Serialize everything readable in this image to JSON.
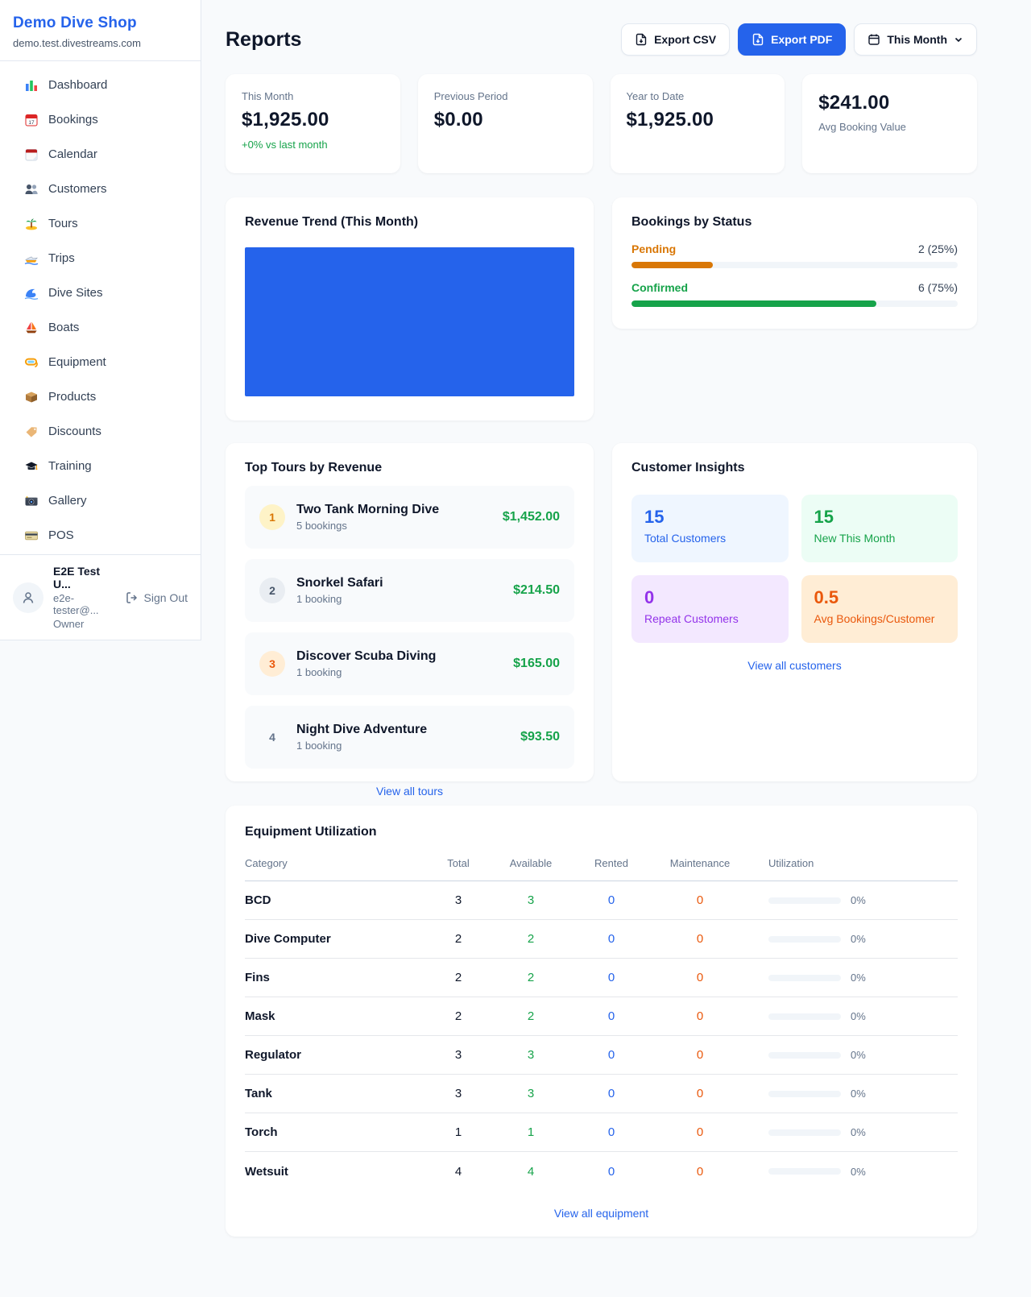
{
  "colors": {
    "accent": "#2563eb",
    "chart_bar": "#2563eb",
    "pending": "#d97706",
    "confirmed": "#16a34a",
    "available": "#16a34a",
    "rented": "#2563eb",
    "maintenance": "#ea580c"
  },
  "sidebar": {
    "shop_name": "Demo Dive Shop",
    "domain": "demo.test.divestreams.com",
    "items": [
      {
        "label": "Dashboard"
      },
      {
        "label": "Bookings"
      },
      {
        "label": "Calendar"
      },
      {
        "label": "Customers"
      },
      {
        "label": "Tours"
      },
      {
        "label": "Trips"
      },
      {
        "label": "Dive Sites"
      },
      {
        "label": "Boats"
      },
      {
        "label": "Equipment"
      },
      {
        "label": "Products"
      },
      {
        "label": "Discounts"
      },
      {
        "label": "Training"
      },
      {
        "label": "Gallery"
      },
      {
        "label": "POS"
      }
    ],
    "user": {
      "name": "E2E Test U...",
      "email": "e2e-tester@...",
      "role": "Owner",
      "sign_out": "Sign Out"
    }
  },
  "header": {
    "title": "Reports",
    "export_csv": "Export CSV",
    "export_pdf": "Export PDF",
    "period": "This Month"
  },
  "stats": [
    {
      "label": "This Month",
      "value": "$1,925.00",
      "delta": "+0% vs last month"
    },
    {
      "label": "Previous Period",
      "value": "$0.00"
    },
    {
      "label": "Year to Date",
      "value": "$1,925.00"
    },
    {
      "label": "Avg Booking Value",
      "value": "$241.00"
    }
  ],
  "revenue_trend": {
    "title": "Revenue Trend (This Month)"
  },
  "bookings_by_status": {
    "title": "Bookings by Status",
    "rows": [
      {
        "label": "Pending",
        "count": "2 (25%)",
        "pct": 25
      },
      {
        "label": "Confirmed",
        "count": "6 (75%)",
        "pct": 75
      }
    ]
  },
  "top_tours": {
    "title": "Top Tours by Revenue",
    "rows": [
      {
        "rank": "1",
        "name": "Two Tank Morning Dive",
        "bookings": "5 bookings",
        "amount": "$1,452.00"
      },
      {
        "rank": "2",
        "name": "Snorkel Safari",
        "bookings": "1 booking",
        "amount": "$214.50"
      },
      {
        "rank": "3",
        "name": "Discover Scuba Diving",
        "bookings": "1 booking",
        "amount": "$165.00"
      },
      {
        "rank": "4",
        "name": "Night Dive Adventure",
        "bookings": "1 booking",
        "amount": "$93.50"
      }
    ],
    "view_all": "View all tours"
  },
  "customer_insights": {
    "title": "Customer Insights",
    "tiles": [
      {
        "value": "15",
        "label": "Total Customers"
      },
      {
        "value": "15",
        "label": "New This Month"
      },
      {
        "value": "0",
        "label": "Repeat Customers"
      },
      {
        "value": "0.5",
        "label": "Avg Bookings/Customer"
      }
    ],
    "view_all": "View all customers"
  },
  "equipment": {
    "title": "Equipment Utilization",
    "columns": {
      "category": "Category",
      "total": "Total",
      "available": "Available",
      "rented": "Rented",
      "maintenance": "Maintenance",
      "utilization": "Utilization"
    },
    "rows": [
      {
        "category": "BCD",
        "total": "3",
        "available": "3",
        "rented": "0",
        "maintenance": "0",
        "utilization": "0%",
        "pct": 0
      },
      {
        "category": "Dive Computer",
        "total": "2",
        "available": "2",
        "rented": "0",
        "maintenance": "0",
        "utilization": "0%",
        "pct": 0
      },
      {
        "category": "Fins",
        "total": "2",
        "available": "2",
        "rented": "0",
        "maintenance": "0",
        "utilization": "0%",
        "pct": 0
      },
      {
        "category": "Mask",
        "total": "2",
        "available": "2",
        "rented": "0",
        "maintenance": "0",
        "utilization": "0%",
        "pct": 0
      },
      {
        "category": "Regulator",
        "total": "3",
        "available": "3",
        "rented": "0",
        "maintenance": "0",
        "utilization": "0%",
        "pct": 0
      },
      {
        "category": "Tank",
        "total": "3",
        "available": "3",
        "rented": "0",
        "maintenance": "0",
        "utilization": "0%",
        "pct": 0
      },
      {
        "category": "Torch",
        "total": "1",
        "available": "1",
        "rented": "0",
        "maintenance": "0",
        "utilization": "0%",
        "pct": 0
      },
      {
        "category": "Wetsuit",
        "total": "4",
        "available": "4",
        "rented": "0",
        "maintenance": "0",
        "utilization": "0%",
        "pct": 0
      }
    ],
    "view_all": "View all equipment"
  }
}
